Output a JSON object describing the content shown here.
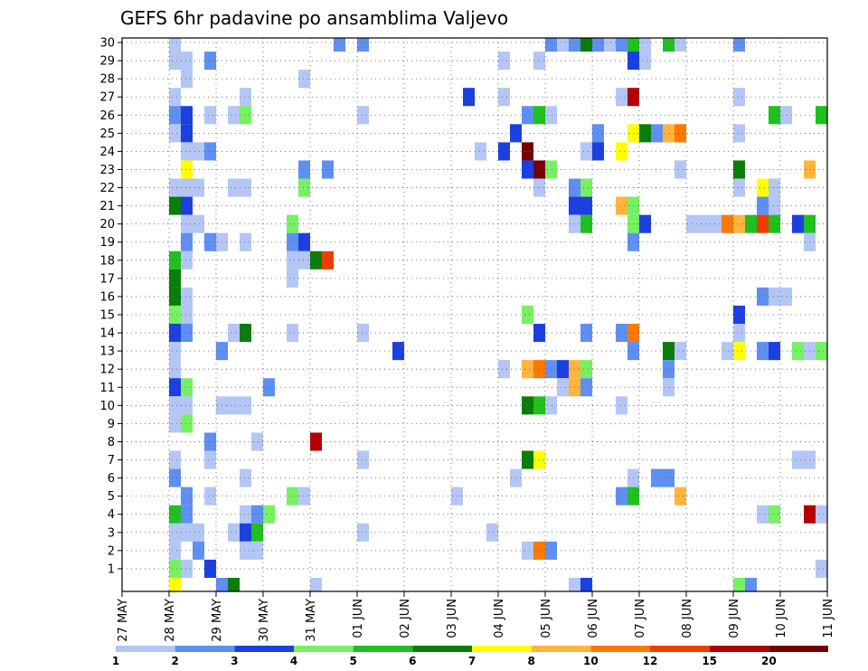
{
  "chart_data": {
    "type": "heatmap",
    "title": "GEFS 6hr padavine po ansamblima Valjevo",
    "xlabel": "",
    "ylabel": "",
    "x_tick_labels": [
      "27 MAY",
      "28 MAY",
      "29 MAY",
      "30 MAY",
      "31 MAY",
      "01 JUN",
      "02 JUN",
      "03 JUN",
      "04 JUN",
      "05 JUN",
      "06 JUN",
      "07 JUN",
      "08 JUN",
      "09 JUN",
      "10 JUN",
      "11 JUN"
    ],
    "y_tick_labels": [
      "1",
      "2",
      "3",
      "4",
      "5",
      "6",
      "7",
      "8",
      "9",
      "10",
      "11",
      "12",
      "13",
      "14",
      "15",
      "16",
      "17",
      "18",
      "19",
      "20",
      "21",
      "22",
      "23",
      "24",
      "25",
      "26",
      "27",
      "28",
      "29",
      "30"
    ],
    "x_range_steps": [
      0,
      60
    ],
    "y_range_members": [
      0,
      30
    ],
    "grid": true,
    "legend": {
      "placement": "bottom",
      "levels": [
        "1",
        "2",
        "3",
        "4",
        "5",
        "6",
        "7",
        "8",
        "10",
        "12",
        "15",
        "20"
      ],
      "colors": [
        "#b4c6f5",
        "#5f8ff0",
        "#1c3fe0",
        "#78f063",
        "#1fc01f",
        "#0a7d0a",
        "#ffff00",
        "#ffb43c",
        "#ff7800",
        "#f03c00",
        "#b40000",
        "#780000"
      ]
    },
    "cells": [
      [
        4,
        30,
        1
      ],
      [
        18,
        30,
        2
      ],
      [
        20,
        30,
        2
      ],
      [
        36,
        30,
        2
      ],
      [
        37,
        30,
        1
      ],
      [
        38,
        30,
        2
      ],
      [
        39,
        30,
        6
      ],
      [
        40,
        30,
        2
      ],
      [
        41,
        30,
        1
      ],
      [
        42,
        30,
        2
      ],
      [
        43,
        30,
        5
      ],
      [
        44,
        30,
        1
      ],
      [
        46,
        30,
        5
      ],
      [
        47,
        30,
        1
      ],
      [
        52,
        30,
        2
      ],
      [
        4,
        29,
        1
      ],
      [
        5,
        29,
        1
      ],
      [
        7,
        29,
        2
      ],
      [
        32,
        29,
        1
      ],
      [
        35,
        29,
        1
      ],
      [
        43,
        29,
        3
      ],
      [
        44,
        29,
        1
      ],
      [
        5,
        28,
        1
      ],
      [
        15,
        28,
        1
      ],
      [
        4,
        27,
        1
      ],
      [
        10,
        27,
        1
      ],
      [
        29,
        27,
        3
      ],
      [
        32,
        27,
        1
      ],
      [
        42,
        27,
        1
      ],
      [
        43,
        27,
        11
      ],
      [
        52,
        27,
        1
      ],
      [
        4,
        26,
        2
      ],
      [
        5,
        26,
        3
      ],
      [
        7,
        26,
        1
      ],
      [
        9,
        26,
        1
      ],
      [
        10,
        26,
        4
      ],
      [
        20,
        26,
        1
      ],
      [
        34,
        26,
        2
      ],
      [
        35,
        26,
        5
      ],
      [
        36,
        26,
        1
      ],
      [
        55,
        26,
        5
      ],
      [
        56,
        26,
        1
      ],
      [
        59,
        26,
        5
      ],
      [
        4,
        25,
        1
      ],
      [
        5,
        25,
        3
      ],
      [
        33,
        25,
        3
      ],
      [
        40,
        25,
        2
      ],
      [
        43,
        25,
        7
      ],
      [
        44,
        25,
        6
      ],
      [
        45,
        25,
        2
      ],
      [
        46,
        25,
        8
      ],
      [
        47,
        25,
        9
      ],
      [
        52,
        25,
        1
      ],
      [
        5,
        24,
        1
      ],
      [
        6,
        24,
        1
      ],
      [
        7,
        24,
        2
      ],
      [
        30,
        24,
        1
      ],
      [
        32,
        24,
        3
      ],
      [
        34,
        24,
        12
      ],
      [
        39,
        24,
        1
      ],
      [
        40,
        24,
        3
      ],
      [
        42,
        24,
        7
      ],
      [
        5,
        23,
        7
      ],
      [
        15,
        23,
        2
      ],
      [
        17,
        23,
        2
      ],
      [
        34,
        23,
        3
      ],
      [
        35,
        23,
        12
      ],
      [
        36,
        23,
        4
      ],
      [
        47,
        23,
        1
      ],
      [
        52,
        23,
        6
      ],
      [
        58,
        23,
        8
      ],
      [
        4,
        22,
        1
      ],
      [
        5,
        22,
        1
      ],
      [
        6,
        22,
        1
      ],
      [
        9,
        22,
        1
      ],
      [
        10,
        22,
        1
      ],
      [
        15,
        22,
        4
      ],
      [
        35,
        22,
        1
      ],
      [
        38,
        22,
        2
      ],
      [
        39,
        22,
        4
      ],
      [
        52,
        22,
        1
      ],
      [
        54,
        22,
        7
      ],
      [
        55,
        22,
        1
      ],
      [
        4,
        21,
        6
      ],
      [
        5,
        21,
        3
      ],
      [
        38,
        21,
        3
      ],
      [
        39,
        21,
        3
      ],
      [
        42,
        21,
        8
      ],
      [
        43,
        21,
        4
      ],
      [
        54,
        21,
        2
      ],
      [
        55,
        21,
        1
      ],
      [
        5,
        20,
        1
      ],
      [
        6,
        20,
        1
      ],
      [
        14,
        20,
        4
      ],
      [
        38,
        20,
        1
      ],
      [
        39,
        20,
        5
      ],
      [
        43,
        20,
        4
      ],
      [
        44,
        20,
        3
      ],
      [
        48,
        20,
        1
      ],
      [
        49,
        20,
        1
      ],
      [
        50,
        20,
        1
      ],
      [
        51,
        20,
        9
      ],
      [
        52,
        20,
        8
      ],
      [
        53,
        20,
        5
      ],
      [
        54,
        20,
        10
      ],
      [
        55,
        20,
        5
      ],
      [
        57,
        20,
        3
      ],
      [
        58,
        20,
        5
      ],
      [
        5,
        19,
        2
      ],
      [
        7,
        19,
        2
      ],
      [
        8,
        19,
        1
      ],
      [
        10,
        19,
        1
      ],
      [
        14,
        19,
        2
      ],
      [
        15,
        19,
        3
      ],
      [
        43,
        19,
        2
      ],
      [
        58,
        19,
        1
      ],
      [
        4,
        18,
        5
      ],
      [
        5,
        18,
        1
      ],
      [
        14,
        18,
        1
      ],
      [
        15,
        18,
        1
      ],
      [
        16,
        18,
        6
      ],
      [
        17,
        18,
        10
      ],
      [
        4,
        17,
        6
      ],
      [
        14,
        17,
        1
      ],
      [
        4,
        16,
        6
      ],
      [
        5,
        16,
        1
      ],
      [
        54,
        16,
        2
      ],
      [
        55,
        16,
        1
      ],
      [
        56,
        16,
        1
      ],
      [
        4,
        15,
        4
      ],
      [
        5,
        15,
        1
      ],
      [
        34,
        15,
        4
      ],
      [
        52,
        15,
        3
      ],
      [
        4,
        14,
        3
      ],
      [
        5,
        14,
        2
      ],
      [
        9,
        14,
        1
      ],
      [
        10,
        14,
        6
      ],
      [
        14,
        14,
        1
      ],
      [
        20,
        14,
        1
      ],
      [
        35,
        14,
        3
      ],
      [
        39,
        14,
        2
      ],
      [
        42,
        14,
        2
      ],
      [
        43,
        14,
        9
      ],
      [
        52,
        14,
        1
      ],
      [
        4,
        13,
        1
      ],
      [
        8,
        13,
        2
      ],
      [
        23,
        13,
        3
      ],
      [
        43,
        13,
        2
      ],
      [
        46,
        13,
        6
      ],
      [
        47,
        13,
        1
      ],
      [
        51,
        13,
        1
      ],
      [
        52,
        13,
        7
      ],
      [
        54,
        13,
        2
      ],
      [
        55,
        13,
        3
      ],
      [
        57,
        13,
        4
      ],
      [
        58,
        13,
        1
      ],
      [
        59,
        13,
        4
      ],
      [
        4,
        12,
        1
      ],
      [
        32,
        12,
        1
      ],
      [
        34,
        12,
        8
      ],
      [
        35,
        12,
        9
      ],
      [
        36,
        12,
        2
      ],
      [
        37,
        12,
        3
      ],
      [
        38,
        12,
        8
      ],
      [
        39,
        12,
        4
      ],
      [
        46,
        12,
        2
      ],
      [
        4,
        11,
        3
      ],
      [
        5,
        11,
        4
      ],
      [
        12,
        11,
        2
      ],
      [
        37,
        11,
        1
      ],
      [
        38,
        11,
        8
      ],
      [
        39,
        11,
        2
      ],
      [
        46,
        11,
        1
      ],
      [
        4,
        10,
        1
      ],
      [
        5,
        10,
        1
      ],
      [
        8,
        10,
        1
      ],
      [
        9,
        10,
        1
      ],
      [
        10,
        10,
        1
      ],
      [
        34,
        10,
        6
      ],
      [
        35,
        10,
        5
      ],
      [
        36,
        10,
        1
      ],
      [
        42,
        10,
        1
      ],
      [
        4,
        9,
        1
      ],
      [
        5,
        9,
        4
      ],
      [
        7,
        8,
        2
      ],
      [
        11,
        8,
        1
      ],
      [
        16,
        8,
        11
      ],
      [
        4,
        7,
        1
      ],
      [
        7,
        7,
        1
      ],
      [
        20,
        7,
        1
      ],
      [
        34,
        7,
        6
      ],
      [
        35,
        7,
        7
      ],
      [
        57,
        7,
        1
      ],
      [
        58,
        7,
        1
      ],
      [
        4,
        6,
        2
      ],
      [
        10,
        6,
        1
      ],
      [
        33,
        6,
        1
      ],
      [
        43,
        6,
        1
      ],
      [
        45,
        6,
        2
      ],
      [
        46,
        6,
        2
      ],
      [
        5,
        5,
        2
      ],
      [
        7,
        5,
        1
      ],
      [
        14,
        5,
        4
      ],
      [
        15,
        5,
        1
      ],
      [
        28,
        5,
        1
      ],
      [
        42,
        5,
        2
      ],
      [
        43,
        5,
        5
      ],
      [
        47,
        5,
        8
      ],
      [
        4,
        4,
        5
      ],
      [
        5,
        4,
        2
      ],
      [
        10,
        4,
        1
      ],
      [
        11,
        4,
        2
      ],
      [
        12,
        4,
        4
      ],
      [
        54,
        4,
        1
      ],
      [
        55,
        4,
        4
      ],
      [
        58,
        4,
        11
      ],
      [
        59,
        4,
        1
      ],
      [
        4,
        3,
        1
      ],
      [
        5,
        3,
        1
      ],
      [
        6,
        3,
        1
      ],
      [
        9,
        3,
        1
      ],
      [
        10,
        3,
        3
      ],
      [
        11,
        3,
        5
      ],
      [
        20,
        3,
        1
      ],
      [
        31,
        3,
        1
      ],
      [
        4,
        2,
        1
      ],
      [
        6,
        2,
        2
      ],
      [
        10,
        2,
        1
      ],
      [
        11,
        2,
        1
      ],
      [
        34,
        2,
        1
      ],
      [
        35,
        2,
        9
      ],
      [
        36,
        2,
        2
      ],
      [
        4,
        1,
        4
      ],
      [
        5,
        1,
        1
      ],
      [
        7,
        1,
        3
      ],
      [
        59,
        1,
        1
      ],
      [
        4,
        0,
        7
      ],
      [
        8,
        0,
        2
      ],
      [
        9,
        0,
        6
      ],
      [
        16,
        0,
        1
      ],
      [
        38,
        0,
        1
      ],
      [
        39,
        0,
        3
      ],
      [
        52,
        0,
        4
      ],
      [
        53,
        0,
        2
      ]
    ]
  }
}
